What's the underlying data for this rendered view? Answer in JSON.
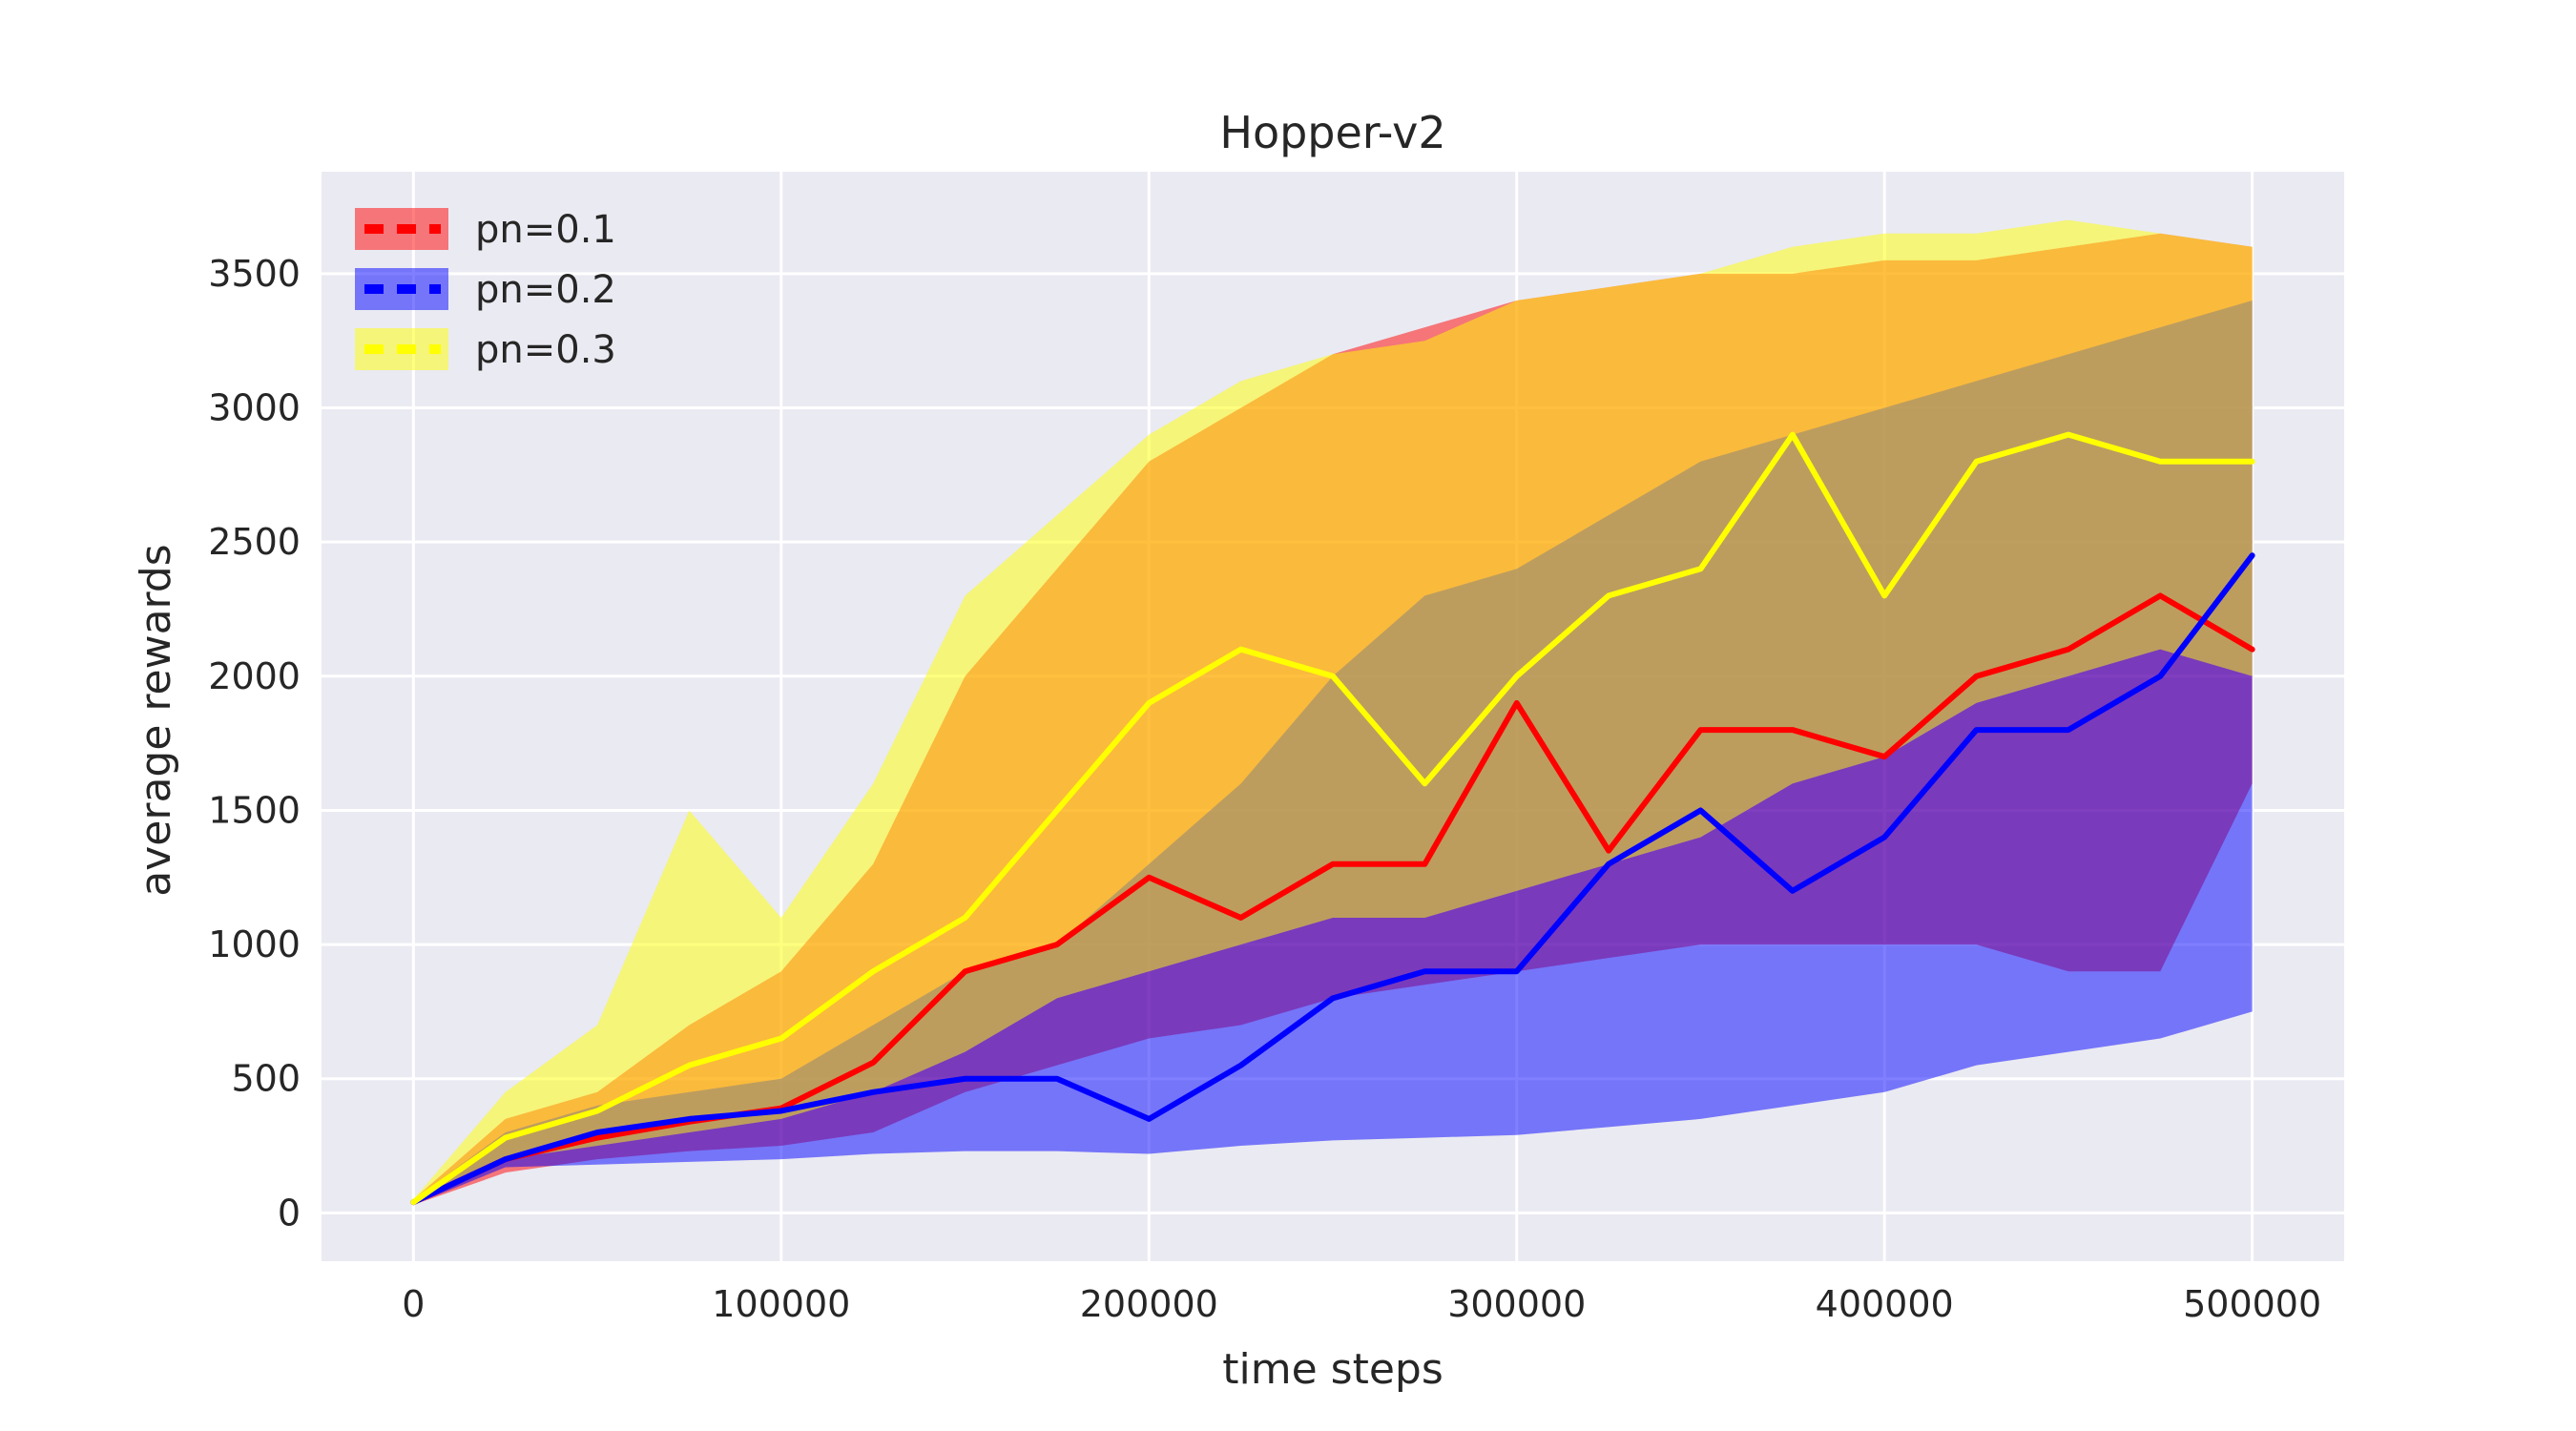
{
  "chart_data": {
    "type": "line",
    "title": "Hopper-v2",
    "xlabel": "time steps",
    "ylabel": "average rewards",
    "xlim": [
      -25000,
      525000
    ],
    "ylim": [
      -180,
      3880
    ],
    "xticks": [
      0,
      100000,
      200000,
      300000,
      400000,
      500000
    ],
    "yticks": [
      0,
      500,
      1000,
      1500,
      2000,
      2500,
      3000,
      3500
    ],
    "grid": true,
    "legend_position": "top-left",
    "shaded_band": "mean ± spread",
    "series": [
      {
        "name": "pn=0.1",
        "color": "#ff0000",
        "x": [
          0,
          25000,
          50000,
          75000,
          100000,
          125000,
          150000,
          175000,
          200000,
          225000,
          250000,
          275000,
          300000,
          325000,
          350000,
          375000,
          400000,
          425000,
          450000,
          475000,
          500000
        ],
        "mean": [
          40,
          200,
          280,
          340,
          390,
          560,
          900,
          1000,
          1250,
          1100,
          1300,
          1300,
          1900,
          1350,
          1800,
          1800,
          1700,
          2000,
          2100,
          2300,
          2100
        ],
        "lower": [
          30,
          150,
          200,
          230,
          250,
          300,
          450,
          550,
          650,
          700,
          800,
          850,
          900,
          950,
          1000,
          1000,
          1000,
          1000,
          900,
          900,
          1600
        ],
        "upper": [
          50,
          350,
          450,
          700,
          900,
          1300,
          2000,
          2400,
          2800,
          3000,
          3200,
          3300,
          3400,
          3450,
          3500,
          3500,
          3550,
          3550,
          3600,
          3650,
          3600
        ]
      },
      {
        "name": "pn=0.2",
        "color": "#0000ff",
        "x": [
          0,
          25000,
          50000,
          75000,
          100000,
          125000,
          150000,
          175000,
          200000,
          225000,
          250000,
          275000,
          300000,
          325000,
          350000,
          375000,
          400000,
          425000,
          450000,
          475000,
          500000
        ],
        "mean": [
          40,
          200,
          300,
          350,
          380,
          450,
          500,
          500,
          350,
          550,
          800,
          900,
          900,
          1300,
          1500,
          1200,
          1400,
          1800,
          1800,
          2000,
          2450
        ],
        "lower": [
          30,
          170,
          180,
          190,
          200,
          220,
          230,
          230,
          220,
          250,
          270,
          280,
          290,
          320,
          350,
          400,
          450,
          550,
          600,
          650,
          750
        ],
        "upper": [
          50,
          300,
          400,
          450,
          500,
          700,
          900,
          1000,
          1300,
          1600,
          2000,
          2300,
          2400,
          2600,
          2800,
          2900,
          3000,
          3100,
          3200,
          3300,
          3400
        ]
      },
      {
        "name": "pn=0.3",
        "color": "#ffff00",
        "x": [
          0,
          25000,
          50000,
          75000,
          100000,
          125000,
          150000,
          175000,
          200000,
          225000,
          250000,
          275000,
          300000,
          325000,
          350000,
          375000,
          400000,
          425000,
          450000,
          475000,
          500000
        ],
        "mean": [
          40,
          280,
          380,
          550,
          650,
          900,
          1100,
          1500,
          1900,
          2100,
          2000,
          1600,
          2000,
          2300,
          2400,
          2900,
          2300,
          2800,
          2900,
          2800,
          2800
        ],
        "lower": [
          30,
          200,
          250,
          300,
          350,
          450,
          600,
          800,
          900,
          1000,
          1100,
          1100,
          1200,
          1300,
          1400,
          1600,
          1700,
          1900,
          2000,
          2100,
          2000
        ],
        "upper": [
          50,
          450,
          700,
          1500,
          1100,
          1600,
          2300,
          2600,
          2900,
          3100,
          3200,
          3250,
          3400,
          3450,
          3500,
          3600,
          3650,
          3650,
          3700,
          3650,
          3600
        ]
      }
    ]
  }
}
